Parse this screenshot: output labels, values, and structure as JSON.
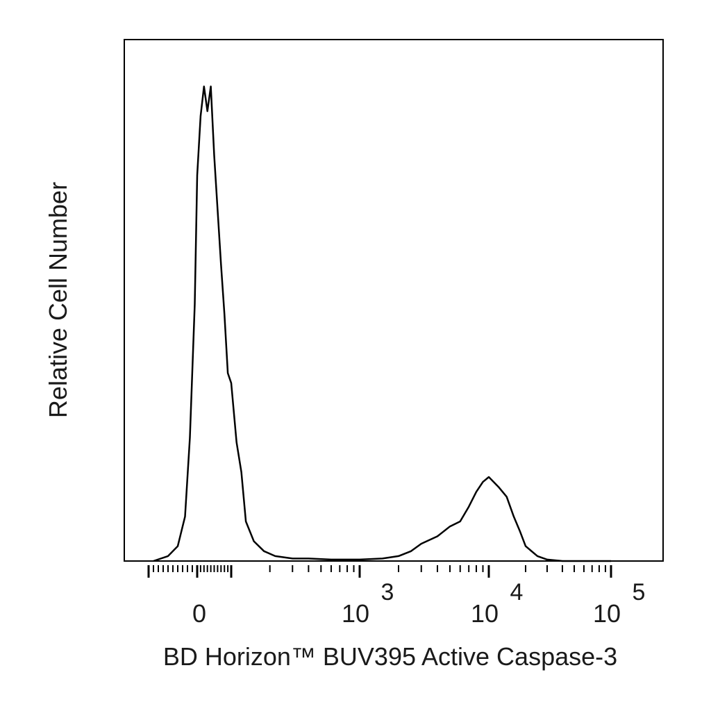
{
  "chart_data": {
    "type": "line",
    "title": "",
    "xlabel": "BD Horizon™ BUV395 Active Caspase-3",
    "ylabel": "Relative Cell Number",
    "x_scale": "biexponential",
    "xlim": [
      -300,
      150000
    ],
    "ylim": [
      0,
      100
    ],
    "grid": false,
    "legend": "none",
    "tick_labels": [
      {
        "id": "0",
        "base": "0",
        "exp": "",
        "value": 0
      },
      {
        "id": "1000",
        "base": "10",
        "exp": "3",
        "value": 1000
      },
      {
        "id": "10000",
        "base": "10",
        "exp": "4",
        "value": 10000
      },
      {
        "id": "100000",
        "base": "10",
        "exp": "5",
        "value": 100000
      }
    ],
    "series": [
      {
        "color": "#000000",
        "x": [
          -180,
          -120,
          -80,
          -50,
          -30,
          -10,
          0,
          10,
          20,
          30,
          40,
          50,
          60,
          70,
          80,
          90,
          100,
          110,
          120,
          130,
          150,
          180,
          220,
          300,
          400,
          600,
          800,
          1000,
          1500,
          2000,
          2500,
          3000,
          4000,
          5000,
          6000,
          7000,
          8000,
          9000,
          10000,
          12000,
          14000,
          16000,
          18000,
          20000,
          25000,
          30000,
          40000,
          60000,
          100000
        ],
        "y": [
          0,
          1,
          3,
          9,
          25,
          52,
          78,
          90,
          96,
          91,
          96,
          82,
          71,
          60,
          50,
          38,
          36,
          24,
          18,
          8,
          4,
          2,
          1,
          0.5,
          0.5,
          0.3,
          0.3,
          0.3,
          0.5,
          1,
          2,
          3.5,
          5,
          7,
          8,
          11,
          14,
          16,
          17,
          15,
          13,
          9,
          6,
          3,
          1,
          0.3,
          0,
          0,
          0
        ]
      }
    ]
  }
}
